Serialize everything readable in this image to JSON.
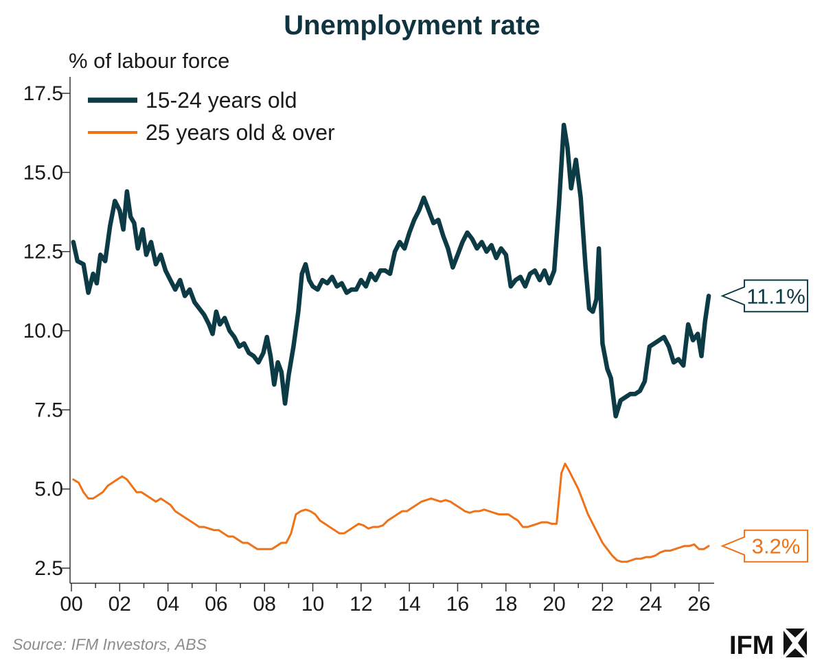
{
  "colors": {
    "youth": "#0c3b46",
    "adult": "#ef7218",
    "axis": "#333333"
  },
  "chart_data": {
    "type": "line",
    "title": "Unemployment rate",
    "ylabel": "% of labour force",
    "xlim": [
      0,
      26.5
    ],
    "ylim": [
      2.0,
      18.0
    ],
    "yticks": [
      2.5,
      5.0,
      7.5,
      10.0,
      12.5,
      15.0,
      17.5
    ],
    "ytick_labels": [
      "2.5",
      "5.0",
      "7.5",
      "10.0",
      "12.5",
      "15.0",
      "17.5"
    ],
    "xticks": [
      0,
      2,
      4,
      6,
      8,
      10,
      12,
      14,
      16,
      18,
      20,
      22,
      24,
      26
    ],
    "xtick_labels": [
      "00",
      "02",
      "04",
      "06",
      "08",
      "10",
      "12",
      "14",
      "16",
      "18",
      "20",
      "22",
      "24",
      "26"
    ],
    "legend_position": "top-left",
    "series": [
      {
        "name": "15-24 years old",
        "color": "#0c3b46",
        "callout": "11.1%",
        "points": [
          [
            0.08,
            12.8
          ],
          [
            0.25,
            12.2
          ],
          [
            0.5,
            12.1
          ],
          [
            0.7,
            11.2
          ],
          [
            0.9,
            11.8
          ],
          [
            1.05,
            11.5
          ],
          [
            1.2,
            12.4
          ],
          [
            1.4,
            12.2
          ],
          [
            1.6,
            13.3
          ],
          [
            1.8,
            14.1
          ],
          [
            2.0,
            13.8
          ],
          [
            2.15,
            13.2
          ],
          [
            2.3,
            14.4
          ],
          [
            2.45,
            13.6
          ],
          [
            2.6,
            13.4
          ],
          [
            2.75,
            12.6
          ],
          [
            2.95,
            13.2
          ],
          [
            3.1,
            12.4
          ],
          [
            3.3,
            12.8
          ],
          [
            3.5,
            12.1
          ],
          [
            3.7,
            12.4
          ],
          [
            3.9,
            11.9
          ],
          [
            4.1,
            11.6
          ],
          [
            4.3,
            11.3
          ],
          [
            4.5,
            11.6
          ],
          [
            4.7,
            11.1
          ],
          [
            4.9,
            11.3
          ],
          [
            5.1,
            10.9
          ],
          [
            5.3,
            10.7
          ],
          [
            5.5,
            10.5
          ],
          [
            5.7,
            10.2
          ],
          [
            5.85,
            9.9
          ],
          [
            6.0,
            10.6
          ],
          [
            6.15,
            10.2
          ],
          [
            6.35,
            10.4
          ],
          [
            6.55,
            10.0
          ],
          [
            6.75,
            9.8
          ],
          [
            6.95,
            9.5
          ],
          [
            7.15,
            9.6
          ],
          [
            7.35,
            9.3
          ],
          [
            7.55,
            9.2
          ],
          [
            7.75,
            9.0
          ],
          [
            7.95,
            9.3
          ],
          [
            8.1,
            9.8
          ],
          [
            8.25,
            9.2
          ],
          [
            8.4,
            8.3
          ],
          [
            8.55,
            9.0
          ],
          [
            8.7,
            8.7
          ],
          [
            8.85,
            7.7
          ],
          [
            9.0,
            8.6
          ],
          [
            9.2,
            9.5
          ],
          [
            9.4,
            10.6
          ],
          [
            9.55,
            11.8
          ],
          [
            9.7,
            12.1
          ],
          [
            9.85,
            11.6
          ],
          [
            10.0,
            11.4
          ],
          [
            10.2,
            11.3
          ],
          [
            10.4,
            11.6
          ],
          [
            10.6,
            11.5
          ],
          [
            10.8,
            11.7
          ],
          [
            11.0,
            11.4
          ],
          [
            11.2,
            11.5
          ],
          [
            11.4,
            11.2
          ],
          [
            11.6,
            11.3
          ],
          [
            11.8,
            11.3
          ],
          [
            12.0,
            11.6
          ],
          [
            12.2,
            11.4
          ],
          [
            12.4,
            11.8
          ],
          [
            12.6,
            11.6
          ],
          [
            12.8,
            11.9
          ],
          [
            13.0,
            11.9
          ],
          [
            13.2,
            11.8
          ],
          [
            13.4,
            12.5
          ],
          [
            13.6,
            12.8
          ],
          [
            13.8,
            12.6
          ],
          [
            14.0,
            13.1
          ],
          [
            14.2,
            13.5
          ],
          [
            14.4,
            13.8
          ],
          [
            14.6,
            14.2
          ],
          [
            14.8,
            13.8
          ],
          [
            15.0,
            13.4
          ],
          [
            15.2,
            13.5
          ],
          [
            15.4,
            13.0
          ],
          [
            15.6,
            12.6
          ],
          [
            15.8,
            12.0
          ],
          [
            16.0,
            12.4
          ],
          [
            16.2,
            12.8
          ],
          [
            16.4,
            13.1
          ],
          [
            16.6,
            12.9
          ],
          [
            16.8,
            12.6
          ],
          [
            17.0,
            12.8
          ],
          [
            17.2,
            12.5
          ],
          [
            17.4,
            12.7
          ],
          [
            17.6,
            12.3
          ],
          [
            17.8,
            12.6
          ],
          [
            18.0,
            12.4
          ],
          [
            18.2,
            11.4
          ],
          [
            18.4,
            11.6
          ],
          [
            18.6,
            11.7
          ],
          [
            18.8,
            11.4
          ],
          [
            19.0,
            11.8
          ],
          [
            19.2,
            11.9
          ],
          [
            19.4,
            11.6
          ],
          [
            19.6,
            11.9
          ],
          [
            19.8,
            11.5
          ],
          [
            20.0,
            11.9
          ],
          [
            20.2,
            14.0
          ],
          [
            20.4,
            16.5
          ],
          [
            20.55,
            15.8
          ],
          [
            20.7,
            14.5
          ],
          [
            20.9,
            15.4
          ],
          [
            21.1,
            14.2
          ],
          [
            21.3,
            12.0
          ],
          [
            21.45,
            10.7
          ],
          [
            21.6,
            10.6
          ],
          [
            21.75,
            11.0
          ],
          [
            21.85,
            12.6
          ],
          [
            22.0,
            9.6
          ],
          [
            22.2,
            8.8
          ],
          [
            22.35,
            8.5
          ],
          [
            22.55,
            7.3
          ],
          [
            22.75,
            7.8
          ],
          [
            22.95,
            7.9
          ],
          [
            23.15,
            8.0
          ],
          [
            23.35,
            8.0
          ],
          [
            23.55,
            8.1
          ],
          [
            23.75,
            8.4
          ],
          [
            23.95,
            9.5
          ],
          [
            24.15,
            9.6
          ],
          [
            24.35,
            9.7
          ],
          [
            24.55,
            9.8
          ],
          [
            24.75,
            9.5
          ],
          [
            24.95,
            9.0
          ],
          [
            25.15,
            9.1
          ],
          [
            25.35,
            8.9
          ],
          [
            25.55,
            10.2
          ],
          [
            25.75,
            9.7
          ],
          [
            25.95,
            9.9
          ],
          [
            26.1,
            9.2
          ],
          [
            26.25,
            10.3
          ],
          [
            26.4,
            11.1
          ]
        ]
      },
      {
        "name": "25 years old & over",
        "color": "#ef7218",
        "callout": "3.2%",
        "points": [
          [
            0.08,
            5.3
          ],
          [
            0.3,
            5.2
          ],
          [
            0.5,
            4.9
          ],
          [
            0.7,
            4.7
          ],
          [
            0.9,
            4.7
          ],
          [
            1.1,
            4.8
          ],
          [
            1.3,
            4.9
          ],
          [
            1.5,
            5.1
          ],
          [
            1.7,
            5.2
          ],
          [
            1.9,
            5.3
          ],
          [
            2.1,
            5.4
          ],
          [
            2.3,
            5.3
          ],
          [
            2.5,
            5.1
          ],
          [
            2.7,
            4.9
          ],
          [
            2.9,
            4.9
          ],
          [
            3.1,
            4.8
          ],
          [
            3.3,
            4.7
          ],
          [
            3.5,
            4.6
          ],
          [
            3.7,
            4.7
          ],
          [
            3.9,
            4.6
          ],
          [
            4.1,
            4.5
          ],
          [
            4.3,
            4.3
          ],
          [
            4.5,
            4.2
          ],
          [
            4.7,
            4.1
          ],
          [
            4.9,
            4.0
          ],
          [
            5.1,
            3.9
          ],
          [
            5.3,
            3.8
          ],
          [
            5.5,
            3.8
          ],
          [
            5.7,
            3.75
          ],
          [
            5.9,
            3.7
          ],
          [
            6.1,
            3.7
          ],
          [
            6.3,
            3.6
          ],
          [
            6.5,
            3.5
          ],
          [
            6.7,
            3.5
          ],
          [
            6.9,
            3.4
          ],
          [
            7.1,
            3.3
          ],
          [
            7.3,
            3.3
          ],
          [
            7.5,
            3.2
          ],
          [
            7.7,
            3.1
          ],
          [
            7.9,
            3.1
          ],
          [
            8.1,
            3.1
          ],
          [
            8.3,
            3.1
          ],
          [
            8.5,
            3.2
          ],
          [
            8.7,
            3.3
          ],
          [
            8.9,
            3.3
          ],
          [
            9.1,
            3.6
          ],
          [
            9.3,
            4.2
          ],
          [
            9.5,
            4.3
          ],
          [
            9.7,
            4.35
          ],
          [
            9.9,
            4.3
          ],
          [
            10.1,
            4.2
          ],
          [
            10.3,
            4.0
          ],
          [
            10.5,
            3.9
          ],
          [
            10.7,
            3.8
          ],
          [
            10.9,
            3.7
          ],
          [
            11.1,
            3.6
          ],
          [
            11.3,
            3.6
          ],
          [
            11.5,
            3.7
          ],
          [
            11.7,
            3.8
          ],
          [
            11.9,
            3.9
          ],
          [
            12.1,
            3.85
          ],
          [
            12.3,
            3.75
          ],
          [
            12.5,
            3.8
          ],
          [
            12.7,
            3.8
          ],
          [
            12.9,
            3.85
          ],
          [
            13.1,
            4.0
          ],
          [
            13.3,
            4.1
          ],
          [
            13.5,
            4.2
          ],
          [
            13.7,
            4.3
          ],
          [
            13.9,
            4.3
          ],
          [
            14.1,
            4.4
          ],
          [
            14.3,
            4.5
          ],
          [
            14.5,
            4.6
          ],
          [
            14.7,
            4.65
          ],
          [
            14.9,
            4.7
          ],
          [
            15.1,
            4.65
          ],
          [
            15.3,
            4.6
          ],
          [
            15.5,
            4.65
          ],
          [
            15.7,
            4.6
          ],
          [
            15.9,
            4.5
          ],
          [
            16.1,
            4.4
          ],
          [
            16.3,
            4.3
          ],
          [
            16.5,
            4.25
          ],
          [
            16.7,
            4.3
          ],
          [
            16.9,
            4.3
          ],
          [
            17.1,
            4.35
          ],
          [
            17.3,
            4.3
          ],
          [
            17.5,
            4.25
          ],
          [
            17.7,
            4.2
          ],
          [
            17.9,
            4.2
          ],
          [
            18.1,
            4.2
          ],
          [
            18.3,
            4.1
          ],
          [
            18.5,
            4.0
          ],
          [
            18.7,
            3.8
          ],
          [
            18.9,
            3.8
          ],
          [
            19.1,
            3.85
          ],
          [
            19.3,
            3.9
          ],
          [
            19.5,
            3.95
          ],
          [
            19.7,
            3.95
          ],
          [
            19.9,
            3.9
          ],
          [
            20.1,
            3.9
          ],
          [
            20.3,
            5.5
          ],
          [
            20.45,
            5.8
          ],
          [
            20.6,
            5.6
          ],
          [
            20.8,
            5.3
          ],
          [
            21.0,
            5.0
          ],
          [
            21.2,
            4.6
          ],
          [
            21.4,
            4.2
          ],
          [
            21.6,
            3.9
          ],
          [
            21.8,
            3.6
          ],
          [
            22.0,
            3.3
          ],
          [
            22.2,
            3.1
          ],
          [
            22.4,
            2.9
          ],
          [
            22.6,
            2.75
          ],
          [
            22.8,
            2.7
          ],
          [
            23.0,
            2.7
          ],
          [
            23.2,
            2.75
          ],
          [
            23.4,
            2.8
          ],
          [
            23.6,
            2.8
          ],
          [
            23.8,
            2.85
          ],
          [
            24.0,
            2.85
          ],
          [
            24.2,
            2.9
          ],
          [
            24.4,
            3.0
          ],
          [
            24.6,
            3.05
          ],
          [
            24.8,
            3.05
          ],
          [
            25.0,
            3.1
          ],
          [
            25.2,
            3.15
          ],
          [
            25.4,
            3.2
          ],
          [
            25.6,
            3.2
          ],
          [
            25.8,
            3.25
          ],
          [
            26.0,
            3.1
          ],
          [
            26.2,
            3.1
          ],
          [
            26.4,
            3.2
          ]
        ]
      }
    ]
  },
  "source": "Source: IFM Investors, ABS",
  "brand": {
    "name": "IFM"
  }
}
